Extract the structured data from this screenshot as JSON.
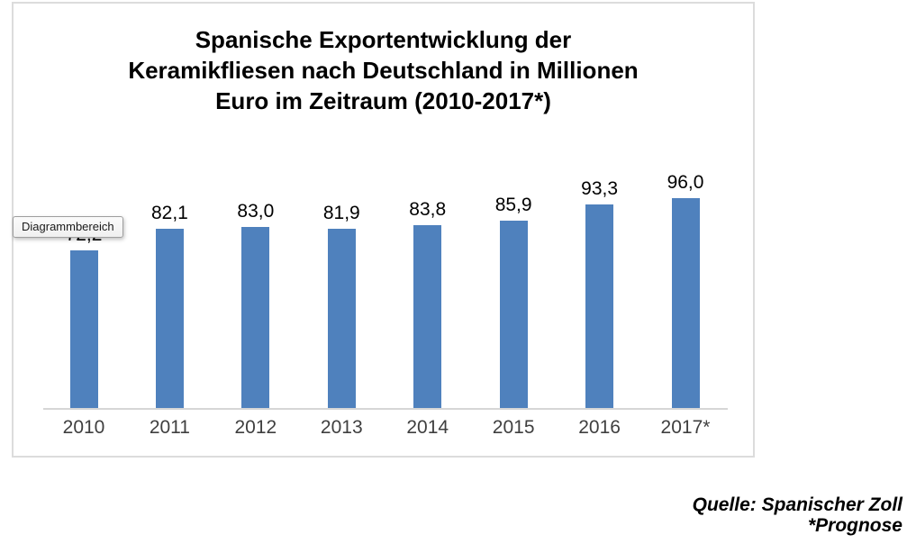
{
  "chart": {
    "title_lines": [
      "Spanische Exportentwicklung der",
      "Keramikfliesen nach Deutschland in Millionen",
      "Euro im Zeitraum (2010-2017*)"
    ],
    "tooltip_text": "Diagrammbereich",
    "source_lines": [
      "Quelle: Spanischer Zoll",
      "*Prognose"
    ]
  },
  "chart_data": {
    "type": "bar",
    "title": "Spanische Exportentwicklung der Keramikfliesen nach Deutschland in Millionen Euro im Zeitraum (2010-2017*)",
    "categories": [
      "2010",
      "2011",
      "2012",
      "2013",
      "2014",
      "2015",
      "2016",
      "2017*"
    ],
    "values": [
      72.2,
      82.1,
      83.0,
      81.9,
      83.8,
      85.9,
      93.3,
      96.0
    ],
    "value_labels": [
      "72,2",
      "82,1",
      "83,0",
      "81,9",
      "83,8",
      "85,9",
      "93,3",
      "96,0"
    ],
    "occluded_value_label": {
      "category": "2010",
      "note": "label hidden behind 'Diagrammbereich' tooltip; value estimated from bar height"
    },
    "xlabel": "",
    "ylabel": "",
    "ylim": [
      0,
      105
    ],
    "grid": false,
    "legend": false,
    "bar_color": "#4F81BD",
    "axis_line_color": "#D6D6D6",
    "annotations": [
      "Quelle: Spanischer Zoll",
      "*Prognose"
    ]
  },
  "colors": {
    "frame_border": "#DCDCDC",
    "tick_label": "#3F3F3F",
    "value_label": "#000000",
    "tooltip_bg": "#F5F5F5",
    "tooltip_border": "#9E9E9E",
    "background": "#FFFFFF"
  }
}
